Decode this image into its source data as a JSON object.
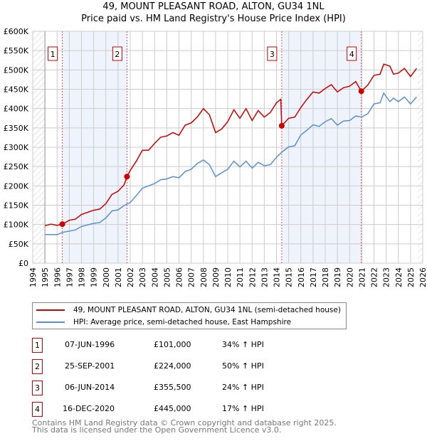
{
  "title_line1": "49, MOUNT PLEASANT ROAD, ALTON, GU34 1NL",
  "title_line2": "Price paid vs. HM Land Registry's House Price Index (HPI)",
  "chart_data": {
    "type": "line",
    "xlim": [
      1994,
      2026
    ],
    "ylim": [
      0,
      600000
    ],
    "x_ticks": [
      1994,
      1995,
      1996,
      1997,
      1998,
      1999,
      2000,
      2001,
      2002,
      2003,
      2004,
      2005,
      2006,
      2007,
      2008,
      2009,
      2010,
      2011,
      2012,
      2013,
      2014,
      2015,
      2016,
      2017,
      2018,
      2019,
      2020,
      2021,
      2022,
      2023,
      2024,
      2025,
      2026
    ],
    "y_ticks": [
      0,
      50000,
      100000,
      150000,
      200000,
      250000,
      300000,
      350000,
      400000,
      450000,
      500000,
      550000,
      600000
    ],
    "y_tick_labels": [
      "£0",
      "£50K",
      "£100K",
      "£150K",
      "£200K",
      "£250K",
      "£300K",
      "£350K",
      "£400K",
      "£450K",
      "£500K",
      "£550K",
      "£600K"
    ],
    "grid": true,
    "series": [
      {
        "name": "49, MOUNT PLEASANT ROAD, ALTON, GU34 1NL (semi-detached house)",
        "color": "#cc0000",
        "x": [
          1995,
          1995.5,
          1996,
          1996.43,
          1997,
          1997.5,
          1998,
          1999,
          1999.5,
          2000,
          2000.5,
          2001,
          2001.5,
          2001.73,
          2002,
          2002.5,
          2003,
          2003.5,
          2004,
          2004.5,
          2005,
          2005.5,
          2006,
          2006.5,
          2007,
          2007.5,
          2008,
          2008.5,
          2009,
          2009.5,
          2010,
          2010.5,
          2011,
          2011.5,
          2012,
          2012.5,
          2013,
          2013.5,
          2014,
          2014.35,
          2014.43,
          2015,
          2015.5,
          2016,
          2016.5,
          2017,
          2017.5,
          2018,
          2018.5,
          2019,
          2019.5,
          2020,
          2020.5,
          2020.96,
          2021.5,
          2022,
          2022.5,
          2022.8,
          2023.3,
          2023.6,
          2024,
          2024.5,
          2025,
          2025.5
        ],
        "y": [
          97000,
          101000,
          98000,
          101000,
          111000,
          114000,
          126000,
          137000,
          140000,
          154000,
          178000,
          186000,
          203000,
          224000,
          240000,
          264000,
          292000,
          292000,
          310000,
          326000,
          329000,
          338000,
          331000,
          357000,
          363000,
          378000,
          400000,
          384000,
          338000,
          347000,
          366000,
          397000,
          375000,
          400000,
          369000,
          395000,
          378000,
          390000,
          415000,
          424000,
          355500,
          375000,
          378000,
          403000,
          424000,
          443000,
          440000,
          452000,
          462000,
          443000,
          454000,
          458000,
          470000,
          445000,
          461000,
          486000,
          489000,
          515000,
          510000,
          489000,
          492000,
          504000,
          483000,
          504000
        ]
      },
      {
        "name": "HPI: Average price, semi-detached house, East Hampshire",
        "color": "#5b8fd4",
        "x": [
          1995,
          1996,
          1996.5,
          1997.5,
          1998,
          1999,
          1999.5,
          2000,
          2000.5,
          2001,
          2001.5,
          2002,
          2002.5,
          2003,
          2003.5,
          2004,
          2004.5,
          2005,
          2005.5,
          2006,
          2006.5,
          2007,
          2007.5,
          2008,
          2008.5,
          2009,
          2009.5,
          2010,
          2010.5,
          2011,
          2011.5,
          2012,
          2012.5,
          2013,
          2013.5,
          2014,
          2014.5,
          2015,
          2015.5,
          2016,
          2016.5,
          2017,
          2017.5,
          2018,
          2018.5,
          2019,
          2019.5,
          2020,
          2020.5,
          2021,
          2021.5,
          2022,
          2022.5,
          2022.8,
          2023.3,
          2023.6,
          2024,
          2024.5,
          2025,
          2025.5
        ],
        "y": [
          74000,
          74000,
          80000,
          86000,
          95000,
          103000,
          105000,
          117000,
          135000,
          138000,
          149000,
          157000,
          175000,
          194000,
          200000,
          206000,
          216000,
          218000,
          224000,
          221000,
          237000,
          243000,
          258000,
          267000,
          255000,
          224000,
          234000,
          243000,
          264000,
          249000,
          264000,
          246000,
          261000,
          252000,
          255000,
          274000,
          289000,
          301000,
          304000,
          332000,
          344000,
          358000,
          354000,
          366000,
          374000,
          357000,
          368000,
          369000,
          381000,
          378000,
          387000,
          412000,
          415000,
          440000,
          418000,
          427000,
          418000,
          430000,
          412000,
          430000
        ]
      }
    ],
    "sales": [
      {
        "label": "1",
        "x": 1996.43,
        "date": "07-JUN-1996",
        "price": 101000,
        "price_text": "£101,000",
        "hpi": "34% ↑ HPI"
      },
      {
        "label": "2",
        "x": 2001.73,
        "date": "25-SEP-2001",
        "price": 224000,
        "price_text": "£224,000",
        "hpi": "50% ↑ HPI"
      },
      {
        "label": "3",
        "x": 2014.43,
        "date": "06-JUN-2014",
        "price": 355500,
        "price_text": "£355,500",
        "hpi": "24% ↑ HPI"
      },
      {
        "label": "4",
        "x": 2020.96,
        "date": "16-DEC-2020",
        "price": 445000,
        "price_text": "£445,000",
        "hpi": "17% ↑ HPI"
      }
    ],
    "shaded_ranges": [
      [
        1996.43,
        2001.73
      ],
      [
        2014.43,
        2020.96
      ]
    ],
    "hatched_ranges": [
      [
        1994,
        1995
      ],
      [
        2025.6,
        2026
      ]
    ],
    "legend_placement": "below"
  },
  "footer_line1": "Contains HM Land Registry data © Crown copyright and database right 2025.",
  "footer_line2": "This data is licensed under the Open Government Licence v3.0."
}
